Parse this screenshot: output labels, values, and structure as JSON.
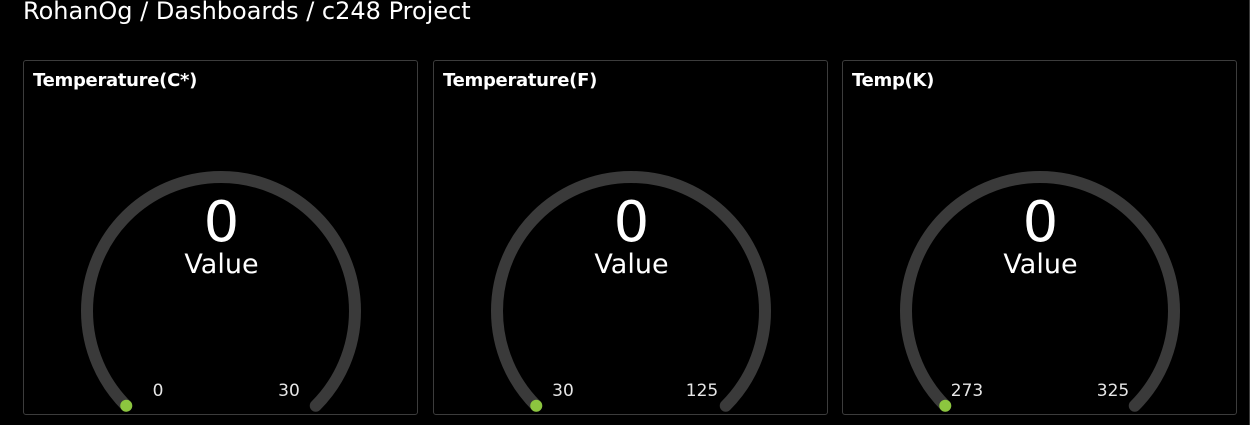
{
  "breadcrumb": "RohanOg / Dashboards / c248 Project",
  "colors": {
    "background": "#000000",
    "panel_border": "#3c3c3c",
    "gauge_track": "#3a3a3a",
    "gauge_indicator": "#8cc63f"
  },
  "gauges": [
    {
      "title": "Temperature(C*)",
      "value": "0",
      "label": "Value",
      "min": "0",
      "max": "30",
      "fraction": 0
    },
    {
      "title": "Temperature(F)",
      "value": "0",
      "label": "Value",
      "min": "30",
      "max": "125",
      "fraction": 0
    },
    {
      "title": "Temp(K)",
      "value": "0",
      "label": "Value",
      "min": "273",
      "max": "325",
      "fraction": 0
    }
  ]
}
